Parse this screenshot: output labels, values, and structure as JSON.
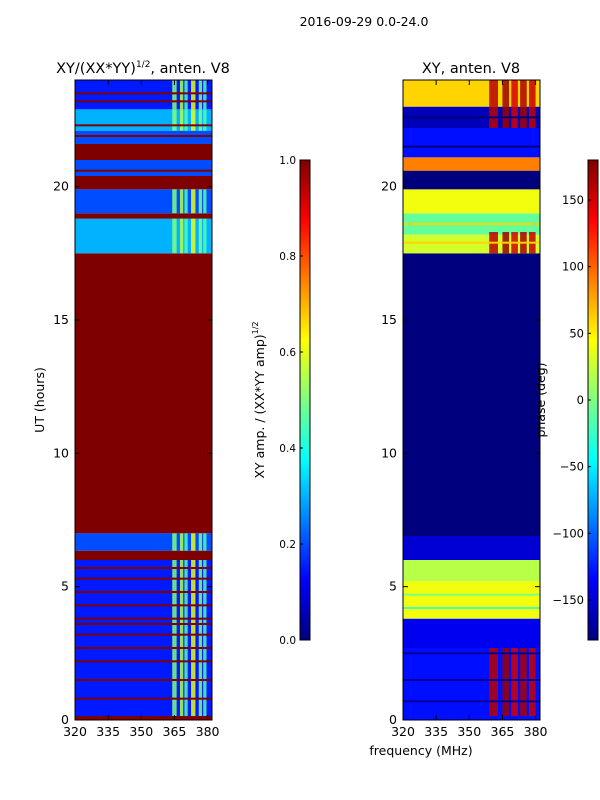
{
  "figure": {
    "suptitle": "2016-09-29 0.0-24.0",
    "xlabel": "frequency (MHz)"
  },
  "colors": {
    "jet": [
      "#00007f",
      "#0000ff",
      "#007fff",
      "#00ffff",
      "#7fff7f",
      "#ffff00",
      "#ff7f00",
      "#ff0000",
      "#7f0000"
    ]
  },
  "chart_data": [
    {
      "type": "heatmap",
      "title": "XY/(XX*YY)",
      "title_sup": "1/2",
      "title_suffix": ", anten. V8",
      "xlabel": "",
      "ylabel": "UT (hours)",
      "xlim": [
        320,
        382
      ],
      "ylim": [
        0,
        24
      ],
      "xticks": [
        320,
        335,
        350,
        365,
        380
      ],
      "yticks": [
        0,
        5,
        10,
        15,
        20
      ],
      "colorbar": {
        "label": "XY amp. / (XX*YY amp)",
        "label_sup": "1/2",
        "range": [
          0.0,
          1.0
        ],
        "ticks": [
          "0.0",
          "0.2",
          "0.4",
          "0.6",
          "0.8",
          "1.0"
        ],
        "tick_values": [
          0.0,
          0.2,
          0.4,
          0.6,
          0.8,
          1.0
        ]
      },
      "bands": [
        {
          "t0": 0.0,
          "t1": 0.15,
          "value": 1.0
        },
        {
          "t0": 0.15,
          "t1": 6.0,
          "value": 0.15
        },
        {
          "t0": 6.0,
          "t1": 6.35,
          "value": 1.0
        },
        {
          "t0": 6.35,
          "t1": 7.0,
          "value": 0.2
        },
        {
          "t0": 7.0,
          "t1": 17.5,
          "value": 1.0
        },
        {
          "t0": 17.5,
          "t1": 18.8,
          "value": 0.3
        },
        {
          "t0": 18.8,
          "t1": 19.0,
          "value": 1.0
        },
        {
          "t0": 19.0,
          "t1": 19.9,
          "value": 0.2
        },
        {
          "t0": 19.9,
          "t1": 20.4,
          "value": 1.0
        },
        {
          "t0": 20.4,
          "t1": 21.0,
          "value": 0.2
        },
        {
          "t0": 21.0,
          "t1": 21.6,
          "value": 1.0
        },
        {
          "t0": 21.6,
          "t1": 22.1,
          "value": 0.2
        },
        {
          "t0": 22.1,
          "t1": 22.9,
          "value": 0.3
        },
        {
          "t0": 22.9,
          "t1": 24.0,
          "value": 0.15
        }
      ],
      "lines": [
        {
          "t": 0.8,
          "value": 1.0
        },
        {
          "t": 1.5,
          "value": 1.0
        },
        {
          "t": 2.2,
          "value": 1.0
        },
        {
          "t": 2.7,
          "value": 1.0
        },
        {
          "t": 3.2,
          "value": 1.0
        },
        {
          "t": 3.6,
          "value": 1.0
        },
        {
          "t": 3.8,
          "value": 1.0
        },
        {
          "t": 4.3,
          "value": 1.0
        },
        {
          "t": 4.8,
          "value": 1.0
        },
        {
          "t": 5.3,
          "value": 1.0
        },
        {
          "t": 5.7,
          "value": 1.0
        },
        {
          "t": 20.6,
          "value": 1.0
        },
        {
          "t": 21.9,
          "value": 1.0
        },
        {
          "t": 22.3,
          "value": 1.0
        },
        {
          "t": 23.2,
          "value": 1.0
        },
        {
          "t": 23.5,
          "value": 1.0
        }
      ],
      "rfi_columns": [
        {
          "f0": 364,
          "f1": 366,
          "value": 0.5
        },
        {
          "f0": 367.5,
          "f1": 369,
          "value": 0.55
        },
        {
          "f0": 369.5,
          "f1": 371,
          "value": 0.45
        },
        {
          "f0": 372.5,
          "f1": 374.5,
          "value": 0.6
        },
        {
          "f0": 376,
          "f1": 377.5,
          "value": 0.5
        },
        {
          "f0": 378,
          "f1": 379.5,
          "value": 0.45
        }
      ],
      "rfi_time_ranges": [
        [
          0.15,
          6.0
        ],
        [
          6.35,
          7.0
        ],
        [
          17.5,
          18.8
        ],
        [
          19.0,
          19.9
        ],
        [
          22.1,
          22.9
        ],
        [
          22.9,
          24.0
        ]
      ]
    },
    {
      "type": "heatmap",
      "title": "XY, anten. V8",
      "xlabel": "",
      "ylabel": "",
      "xlim": [
        320,
        382
      ],
      "ylim": [
        0,
        24
      ],
      "xticks": [
        320,
        335,
        350,
        365,
        380
      ],
      "yticks": [
        0,
        5,
        10,
        15,
        20
      ],
      "colorbar": {
        "label": "phase (deg)",
        "range": [
          -180,
          180
        ],
        "ticks": [
          "−150",
          "−100",
          "−50",
          "0",
          "50",
          "100",
          "150"
        ],
        "tick_values": [
          -150,
          -100,
          -50,
          0,
          50,
          100,
          150
        ]
      },
      "bands": [
        {
          "t0": 0.0,
          "t1": 2.7,
          "value": -130
        },
        {
          "t0": 2.7,
          "t1": 3.8,
          "value": -140
        },
        {
          "t0": 3.8,
          "t1": 5.2,
          "value": 40
        },
        {
          "t0": 5.2,
          "t1": 6.0,
          "value": 20
        },
        {
          "t0": 6.0,
          "t1": 6.9,
          "value": -150
        },
        {
          "t0": 6.9,
          "t1": 17.5,
          "value": -180
        },
        {
          "t0": 17.5,
          "t1": 18.2,
          "value": 30
        },
        {
          "t0": 18.2,
          "t1": 19.0,
          "value": -10
        },
        {
          "t0": 19.0,
          "t1": 19.9,
          "value": 40
        },
        {
          "t0": 19.9,
          "t1": 20.6,
          "value": -180
        },
        {
          "t0": 20.6,
          "t1": 21.1,
          "value": 90
        },
        {
          "t0": 21.1,
          "t1": 22.2,
          "value": -130
        },
        {
          "t0": 22.2,
          "t1": 23.0,
          "value": -160
        },
        {
          "t0": 23.0,
          "t1": 24.0,
          "value": 60
        }
      ],
      "lines": [
        {
          "t": 0.7,
          "value": -170
        },
        {
          "t": 1.5,
          "value": -170
        },
        {
          "t": 2.5,
          "value": -170
        },
        {
          "t": 4.2,
          "value": -20
        },
        {
          "t": 4.7,
          "value": 0
        },
        {
          "t": 17.9,
          "value": 60
        },
        {
          "t": 18.6,
          "value": 60
        },
        {
          "t": 21.5,
          "value": -180
        },
        {
          "t": 22.6,
          "value": -180
        }
      ],
      "rfi_columns": [
        {
          "f0": 359,
          "f1": 363,
          "value": 160
        },
        {
          "f0": 365,
          "f1": 368,
          "value": 170
        },
        {
          "f0": 369,
          "f1": 372,
          "value": 150
        },
        {
          "f0": 373,
          "f1": 376,
          "value": 165
        },
        {
          "f0": 377,
          "f1": 380,
          "value": 155
        }
      ],
      "rfi_time_ranges": [
        [
          0.15,
          2.7
        ],
        [
          17.5,
          18.3
        ],
        [
          22.2,
          23.0
        ],
        [
          23.0,
          24.0
        ]
      ]
    }
  ]
}
